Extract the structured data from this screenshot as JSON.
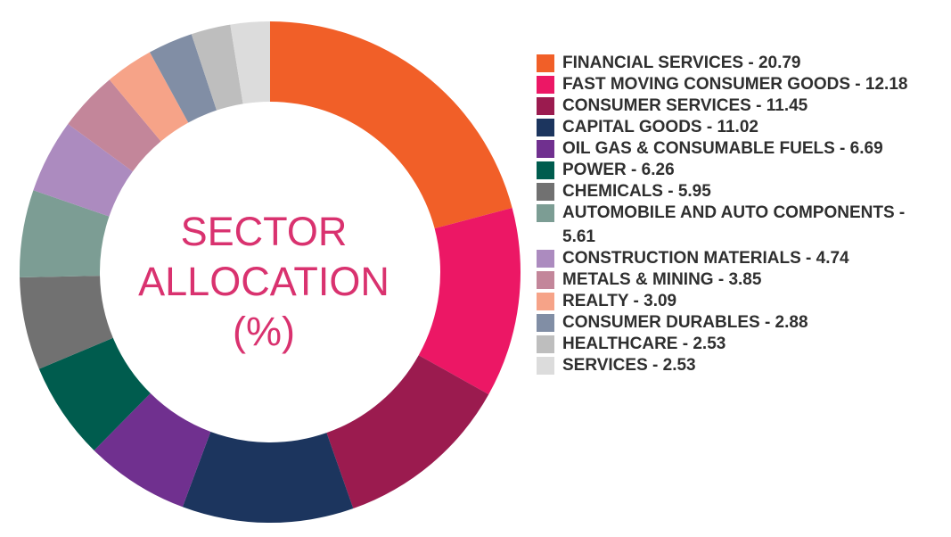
{
  "chart_data": {
    "type": "pie",
    "title_lines": [
      "SECTOR",
      "ALLOCATION",
      "(%)"
    ],
    "donut": true,
    "legend_position": "right",
    "slices": [
      {
        "label": "FINANCIAL SERVICES - 20.79",
        "value": 20.79,
        "color": "#f15f28"
      },
      {
        "label": "FAST MOVING CONSUMER GOODS - 12.18",
        "value": 12.18,
        "color": "#ec1765"
      },
      {
        "label": "CONSUMER SERVICES - 11.45",
        "value": 11.45,
        "color": "#9b1b4f"
      },
      {
        "label": "CAPITAL GOODS - 11.02",
        "value": 11.02,
        "color": "#1c355e"
      },
      {
        "label": "OIL GAS & CONSUMABLE FUELS - 6.69",
        "value": 6.69,
        "color": "#70308f"
      },
      {
        "label": "POWER - 6.26",
        "value": 6.26,
        "color": "#005c4e"
      },
      {
        "label": "CHEMICALS - 5.95",
        "value": 5.95,
        "color": "#717171"
      },
      {
        "label": "AUTOMOBILE AND AUTO COMPONENTS - 5.61",
        "value": 5.61,
        "color": "#7c9d94"
      },
      {
        "label": "CONSTRUCTION MATERIALS - 4.74",
        "value": 4.74,
        "color": "#ac8bbf"
      },
      {
        "label": "METALS & MINING - 3.85",
        "value": 3.85,
        "color": "#c3869a"
      },
      {
        "label": "REALTY - 3.09",
        "value": 3.09,
        "color": "#f6a388"
      },
      {
        "label": "CONSUMER DURABLES - 2.88",
        "value": 2.88,
        "color": "#818ea5"
      },
      {
        "label": "HEALTHCARE - 2.53",
        "value": 2.53,
        "color": "#bebebe"
      },
      {
        "label": "SERVICES - 2.53",
        "value": 2.53,
        "color": "#dcdcdc"
      }
    ]
  }
}
